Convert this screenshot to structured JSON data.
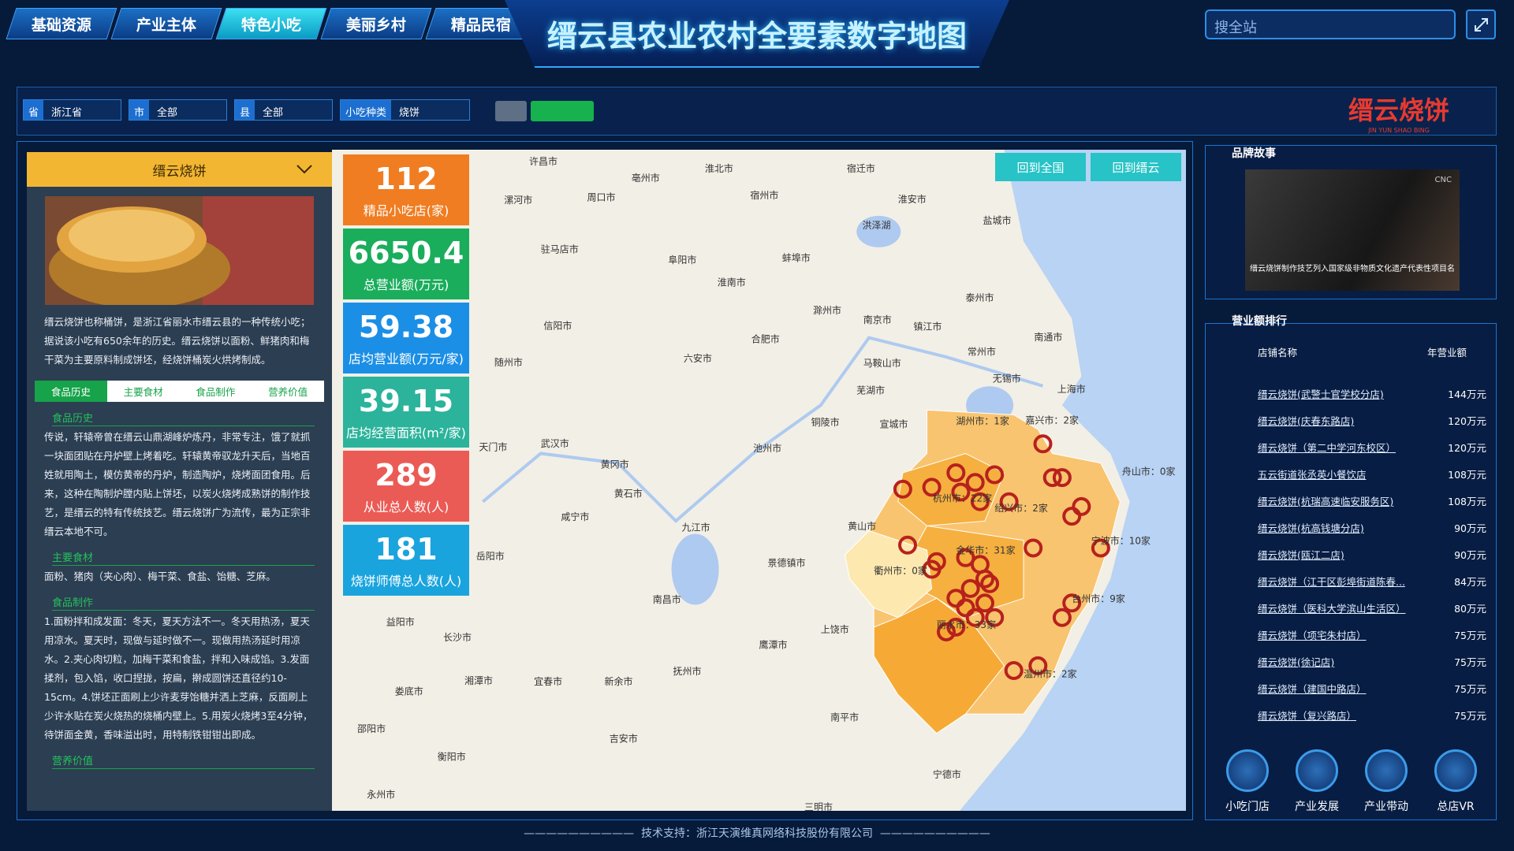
{
  "nav": {
    "tabs": [
      "基础资源",
      "产业主体",
      "特色小吃",
      "美丽乡村",
      "精品民宿"
    ],
    "active": 2
  },
  "header": {
    "title": "缙云县农业农村全要素数字地图",
    "search_placeholder": "搜全站"
  },
  "filters": [
    {
      "label": "省",
      "value": "浙江省"
    },
    {
      "label": "市",
      "value": "全部"
    },
    {
      "label": "县",
      "value": "全部"
    },
    {
      "label": "小吃种类",
      "value": "烧饼"
    }
  ],
  "logo": {
    "text": "缙云烧饼",
    "subtext": "JIN YUN SHAO BING"
  },
  "left_panel": {
    "dropdown": "缙云烧饼",
    "description": "缙云烧饼也称桶饼，是浙江省丽水市缙云县的一种传统小吃；据说该小吃有650余年的历史。缙云烧饼以面粉、鲜猪肉和梅干菜为主要原料制成饼坯，经烧饼桶炭火烘烤制成。",
    "tabs": [
      "食品历史",
      "主要食材",
      "食品制作",
      "营养价值"
    ],
    "sections": [
      {
        "heading": "食品历史",
        "text": "传说，轩辕帝曾在缙云山鼎湖峰炉炼丹，非常专注，饿了就抓一块面团贴在丹炉壁上烤着吃。轩辕黄帝驭龙升天后，当地百姓就用陶土，模仿黄帝的丹炉，制造陶炉，烧烤面团食用。后来，这种在陶制炉膛内贴上饼坯，以炭火烧烤成熟饼的制作技艺，是缙云的特有传统技艺。缙云烧饼广为流传，最为正宗非缙云本地不可。"
      },
      {
        "heading": "主要食材",
        "text": "面粉、猪肉（夹心肉）、梅干菜、食盐、饴糖、芝麻。"
      },
      {
        "heading": "食品制作",
        "text": "1.面粉拌和成发面：冬天，夏天方法不一。冬天用热汤，夏天用凉水。夏天时，现做与延时做不一。现做用热汤延时用凉水。2.夹心肉切粒，加梅干菜和食盐，拌和入味成馅。3.发面揉剂，包入馅，收口捏拢，按扁，擀成圆饼还直径约10-15cm。4.饼坯正面刷上少许麦芽饴糖并洒上芝麻，反面刷上少许水贴在炭火烧热的烧桶内壁上。5.用炭火烧烤3至4分钟，待饼面金黄，香味溢出时，用特制铁钳钳出即成。"
      },
      {
        "heading": "营养价值",
        "text": ""
      }
    ]
  },
  "stats": [
    {
      "value": 112,
      "label": "精品小吃店(家)",
      "color": "#f07d22"
    },
    {
      "value": 6650.4,
      "label": "总营业额(万元)",
      "color": "#1aad5c"
    },
    {
      "value": 59.38,
      "label": "店均营业额(万元/家)",
      "color": "#1b8fe6"
    },
    {
      "value": 39.15,
      "label": "店均经营面积(m²/家)",
      "color": "#2bb39b"
    },
    {
      "value": 289,
      "label": "从业总人数(人)",
      "color": "#eb5b55"
    },
    {
      "value": 181,
      "label": "烧饼师傅总人数(人)",
      "color": "#1aa4de"
    }
  ],
  "map": {
    "buttons": [
      "回到全国",
      "回到缙云"
    ],
    "regions": [
      "湖州市：1家",
      "嘉兴市：2家",
      "杭州市：22家",
      "绍兴市：2家",
      "舟山市：0家",
      "宁波市：10家",
      "金华市：31家",
      "衢州市：0家",
      "台州市：9家",
      "丽水市：33家",
      "温州市：2家"
    ],
    "cities": [
      "许昌市",
      "亳州市",
      "淮北市",
      "宿迁市",
      "漯河市",
      "周口市",
      "宿州市",
      "淮安市",
      "盐城市",
      "驻马店市",
      "阜阳市",
      "蚌埠市",
      "淮南市",
      "滁州市",
      "南京市",
      "泰州市",
      "信阳市",
      "合肥市",
      "镇江市",
      "南通市",
      "随州市",
      "六安市",
      "马鞍山市",
      "常州市",
      "无锡市",
      "芜湖市",
      "上海市",
      "天门市",
      "武汉市",
      "铜陵市",
      "宣城市",
      "池州市",
      "黄冈市",
      "黄石市",
      "咸宁市",
      "九江市",
      "黄山市",
      "岳阳市",
      "景德镇市",
      "南昌市",
      "上饶市",
      "益阳市",
      "长沙市",
      "鹰潭市",
      "抚州市",
      "娄底市",
      "湘潭市",
      "宜春市",
      "新余市",
      "南平市",
      "邵阳市",
      "衡阳市",
      "吉安市",
      "宁德市",
      "永州市",
      "三明市",
      "洪泽湖"
    ]
  },
  "brand_story": {
    "title": "品牌故事",
    "video_logo": "CNC",
    "video_caption": "缙云烧饼制作技艺列入国家级非物质文化遗产代表性项目名录"
  },
  "ranking": {
    "title": "营业额排行",
    "columns": [
      "店铺名称",
      "年营业额"
    ],
    "rows": [
      [
        "缙云烧饼(武警士官学校分店)",
        "144万元"
      ],
      [
        "缙云烧饼(庆春东路店)",
        "120万元"
      ],
      [
        "缙云烧饼（第二中学河东校区）",
        "120万元"
      ],
      [
        "五云街道张丞英小餐饮店",
        "108万元"
      ],
      [
        "缙云烧饼(杭瑞高速临安服务区)",
        "108万元"
      ],
      [
        "缙云烧饼(杭高钱塘分店)",
        "90万元"
      ],
      [
        "缙云烧饼(瓯江二店)",
        "90万元"
      ],
      [
        "缙云烧饼（江干区彭埠街道陈春...",
        "84万元"
      ],
      [
        "缙云烧饼（医科大学滨山生活区）",
        "80万元"
      ],
      [
        "缙云烧饼（项宅朱村店）",
        "75万元"
      ],
      [
        "缙云烧饼(徐记店)",
        "75万元"
      ],
      [
        "缙云烧饼（建国中路店）",
        "75万元"
      ],
      [
        "缙云烧饼（复兴路店）",
        "75万元"
      ]
    ]
  },
  "bottom_nav": [
    "小吃门店",
    "产业发展",
    "产业带动",
    "总店VR"
  ],
  "footer": "技术支持：浙江天演维真网络科技股份有限公司"
}
